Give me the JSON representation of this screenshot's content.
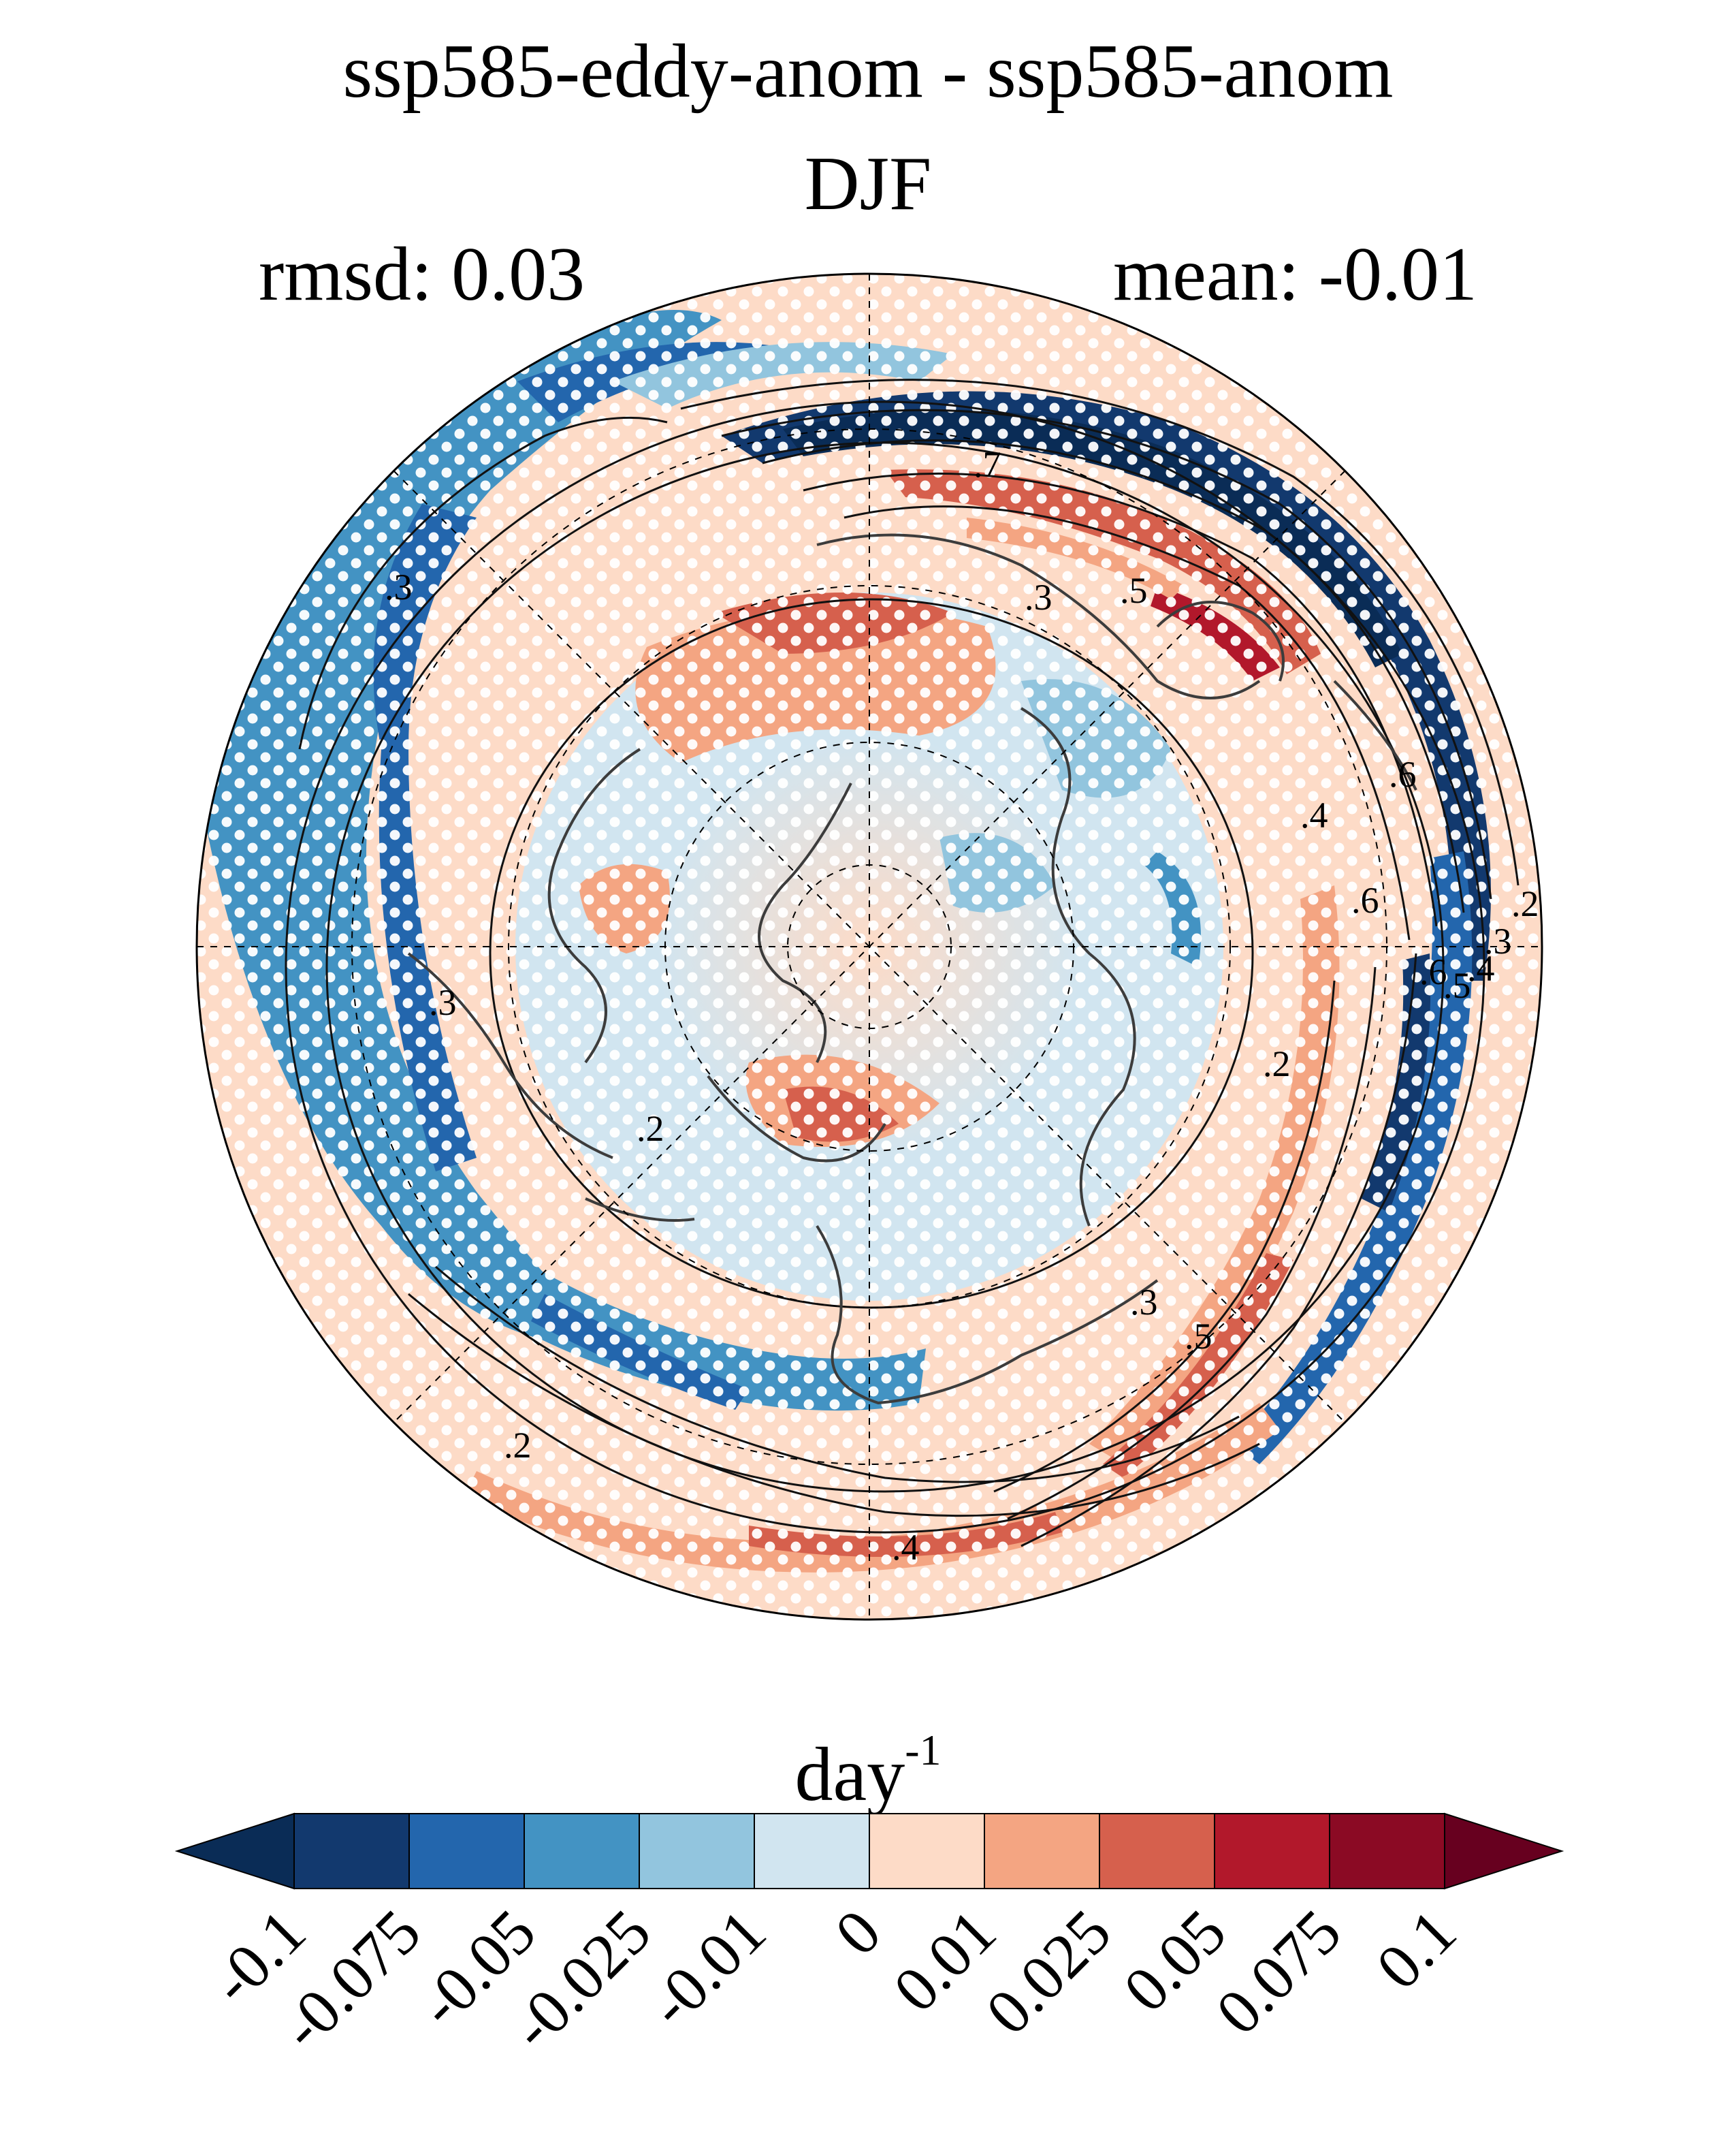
{
  "title": "ssp585-eddy-anom - ssp585-anom",
  "season": "DJF",
  "stats": {
    "rmsd": "rmsd: 0.03",
    "mean": "mean: -0.01"
  },
  "colorbar": {
    "units_base": "day",
    "units_exp": "-1",
    "levels": [
      "-0.1",
      "-0.075",
      "-0.05",
      "-0.025",
      "-0.01",
      "0",
      "0.01",
      "0.025",
      "0.05",
      "0.075",
      "0.1"
    ],
    "colors": [
      "#0a2c56",
      "#12396e",
      "#2366ad",
      "#4393c3",
      "#92c5de",
      "#d1e5f0",
      "#fddbc7",
      "#f4a582",
      "#d6604d",
      "#b2182b",
      "#8b0a24",
      "#67001f"
    ]
  },
  "map": {
    "projection": "north-polar-stereographic",
    "contour_labels": [
      ".3",
      ".7",
      ".3",
      ".5",
      ".6",
      ".4",
      ".6",
      ".2",
      ".3",
      ".4",
      ".5",
      ".6",
      ".3",
      ".2",
      ".2",
      ".3",
      ".5",
      ".4",
      ".2"
    ],
    "stippling": "white dots",
    "colors": {
      "land_outline": "#3c3c3c",
      "contour": "#111111",
      "stipple": "#ffffff"
    }
  }
}
